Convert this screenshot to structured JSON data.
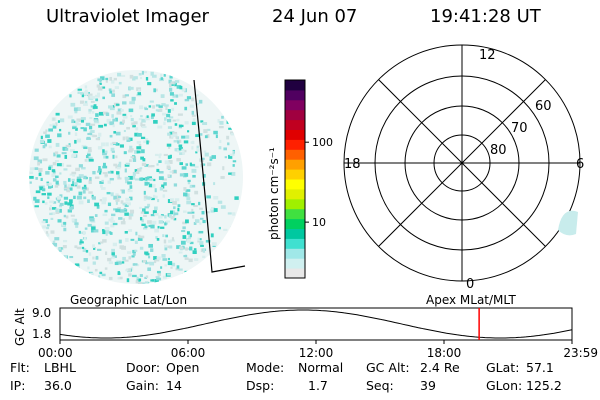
{
  "header": {
    "title": "Ultraviolet Imager",
    "date": "24 Jun 07",
    "time": "19:41:28 UT"
  },
  "colorbar": {
    "unit_label": "photon cm⁻²s⁻¹",
    "ticks": [
      {
        "label": "100",
        "value": 100
      },
      {
        "label": "10",
        "value": 10
      }
    ],
    "colors": [
      "#e8e8e8",
      "#d0f0f0",
      "#a0e8e8",
      "#40e0d0",
      "#00c8a0",
      "#00d060",
      "#40e040",
      "#a0f000",
      "#e0f000",
      "#ffff00",
      "#ffd000",
      "#ffa000",
      "#ff6000",
      "#ff2000",
      "#e00000",
      "#c00020",
      "#a00040",
      "#800060",
      "#500060",
      "#200040"
    ]
  },
  "polar_plot": {
    "hour_labels": {
      "top": "12",
      "left": "18",
      "right": "6",
      "bottom": "0"
    },
    "lat_labels": [
      "60",
      "70",
      "80"
    ]
  },
  "timeline": {
    "panel_labels": {
      "left": "Geographic Lat/Lon",
      "right": "Apex MLat/MLT"
    },
    "y_axis_title": "GC Alt",
    "y_ticks": [
      "9.0",
      "1.8"
    ],
    "x_ticks": [
      "00:00",
      "06:00",
      "12:00",
      "18:00",
      "23:59"
    ],
    "marker_time_fraction": 0.8186,
    "marker_color": "#ff0000"
  },
  "info": {
    "row1": [
      {
        "key": "Flt:",
        "value": "LBHL"
      },
      {
        "key": "Door:",
        "value": "Open"
      },
      {
        "key": "Mode:",
        "value": "Normal"
      },
      {
        "key": "GC Alt:",
        "value": "2.4 Re"
      },
      {
        "key": "GLat:",
        "value": "57.1"
      }
    ],
    "row2": [
      {
        "key": "IP:",
        "value": "36.0"
      },
      {
        "key": "Gain:",
        "value": "14"
      },
      {
        "key": "Dsp:",
        "value": "1.7"
      },
      {
        "key": "Seq:",
        "value": "39"
      },
      {
        "key": "GLon:",
        "value": "125.2"
      }
    ]
  }
}
